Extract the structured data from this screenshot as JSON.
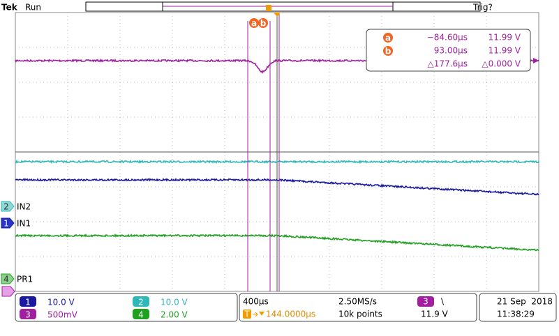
{
  "header": {
    "brand": "Tek",
    "status": "Run",
    "trigger_status": "Trig?"
  },
  "cursors": {
    "markers": [
      "a",
      "b"
    ],
    "readout": [
      [
        "a",
        "−84.60µs",
        "11.99 V"
      ],
      [
        "b",
        "93.00µs",
        "11.99 V"
      ],
      [
        null,
        "△177.6µs",
        "△0.000 V"
      ]
    ]
  },
  "channel_markers": [
    {
      "number": "2",
      "label": "IN2"
    },
    {
      "number": "1",
      "label": "IN1"
    },
    {
      "number": "4",
      "label": "PR1"
    }
  ],
  "footer": {
    "channels": [
      {
        "number": "1",
        "scale": "10.0 V"
      },
      {
        "number": "2",
        "scale": "10.0 V"
      },
      {
        "number": "3",
        "scale": "500mV"
      },
      {
        "number": "4",
        "scale": "2.00 V"
      }
    ],
    "timebase": "400µs",
    "sample_rate": "2.50MS/s",
    "trigger_source": "3",
    "trigger_slope": "\\",
    "trigger_icon": "T",
    "trigger_position": "144.0000µs",
    "record_length": "10k points",
    "trigger_level": "11.9 V",
    "date": "21 Sep  2018",
    "time": "11:38:29"
  }
}
